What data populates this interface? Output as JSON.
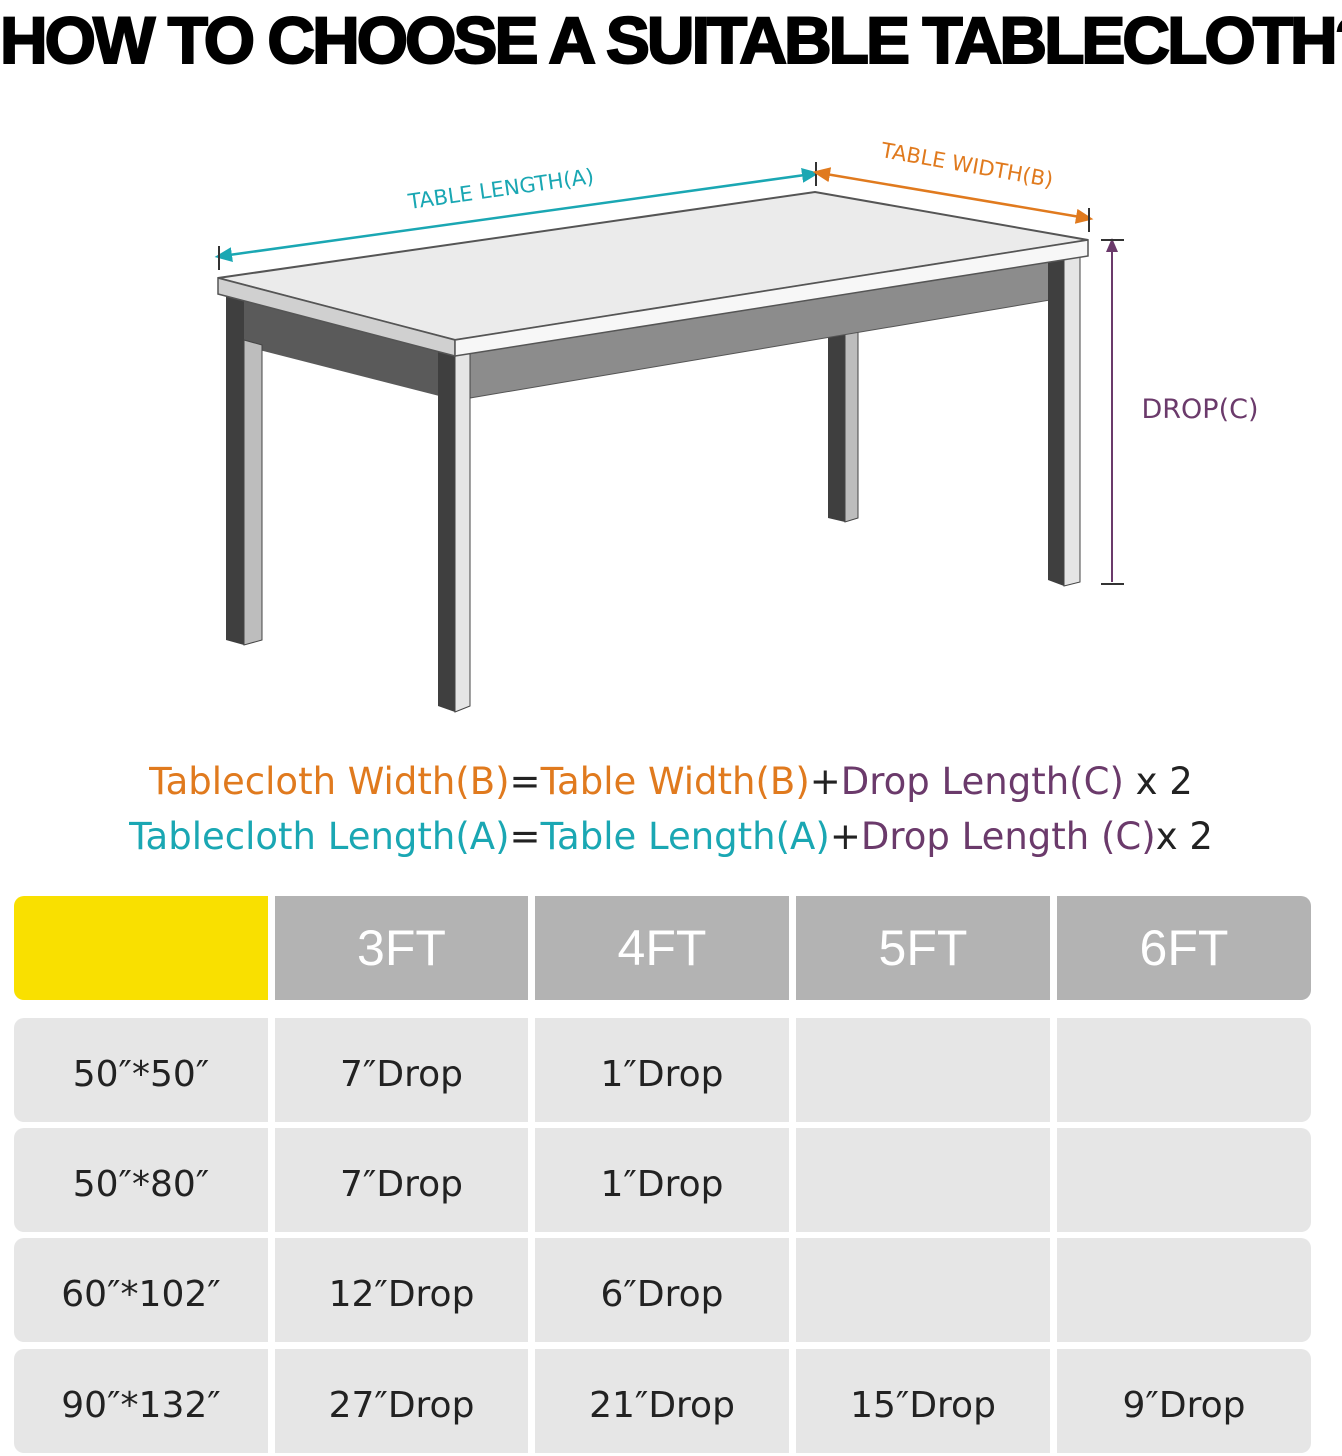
{
  "title": "HOW TO CHOOSE A SUITABLE TABLECLOTH?",
  "diagram": {
    "length_label": "TABLE LENGTH(A)",
    "width_label": "TABLE WIDTH(B)",
    "drop_label": "DROP(C)",
    "colors": {
      "length": "#1aa7b3",
      "width": "#e07a1e",
      "drop": "#6b3a6b"
    }
  },
  "formulas": [
    {
      "lhs": "Tablecloth Width(B)",
      "eq": "=",
      "a": "Table Width(B)",
      "plus": "+",
      "c": "Drop Length(C)",
      "mult": " x 2"
    },
    {
      "lhs": "Tablecloth Length(A)",
      "eq": "=",
      "a": "Table Length(A)",
      "plus": "+",
      "c": "Drop Length (C)",
      "mult": "x 2"
    }
  ],
  "size_table": {
    "corner_color": "#f9e000",
    "headers": [
      "",
      "3FT",
      "4FT",
      "5FT",
      "6FT"
    ],
    "rows": [
      [
        "50″*50″",
        "7″Drop",
        "1″Drop",
        "",
        ""
      ],
      [
        "50″*80″",
        "7″Drop",
        "1″Drop",
        "",
        ""
      ],
      [
        "60″*102″",
        "12″Drop",
        "6″Drop",
        "",
        ""
      ],
      [
        "90″*132″",
        "27″Drop",
        "21″Drop",
        "15″Drop",
        "9″Drop"
      ]
    ]
  }
}
